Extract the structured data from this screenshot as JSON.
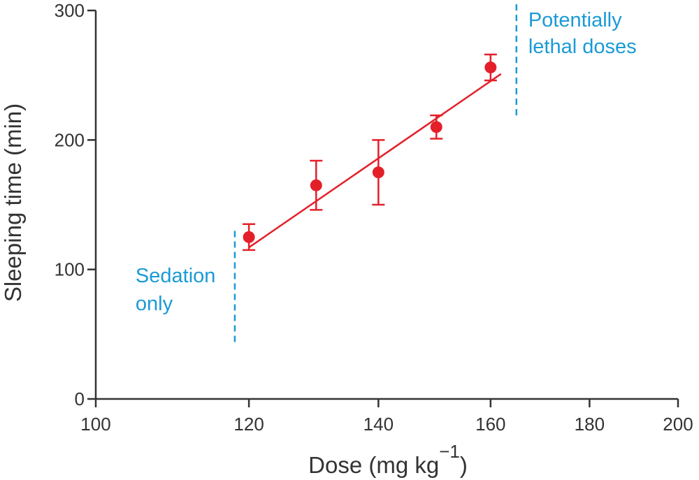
{
  "chart_data": {
    "type": "scatter",
    "xlabel": {
      "text": "Dose (mg kg",
      "sup": "−1",
      "end": ")"
    },
    "ylabel": "Sleeping time (min)",
    "x": [
      120,
      130,
      140,
      150,
      160
    ],
    "series": [
      {
        "color": "#e3202a",
        "values": [
          125,
          165,
          175,
          210,
          256
        ],
        "errors": [
          10,
          19,
          25,
          9,
          10
        ]
      }
    ],
    "fit": {
      "color": "#e3202a",
      "x": [
        120,
        162
      ],
      "y": [
        117,
        251
      ]
    },
    "xscale": "log",
    "xlim": [
      100,
      200
    ],
    "ylim": [
      0,
      300
    ],
    "xticks": [
      100,
      120,
      140,
      160,
      180,
      200
    ],
    "yticks": [
      0,
      100,
      200,
      300
    ],
    "annotations": [
      {
        "lines": [
          "Sedation",
          "only"
        ],
        "color": "#1b9ad6",
        "x": 118,
        "y": [
          44,
          133
        ]
      },
      {
        "lines": [
          "Potentially",
          "lethal doses"
        ],
        "color": "#1b9ad6",
        "x": 165,
        "y": [
          219,
          308
        ]
      }
    ]
  }
}
